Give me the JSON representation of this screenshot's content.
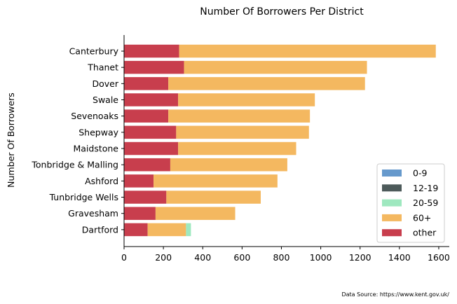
{
  "chart_data": {
    "type": "bar",
    "orientation": "horizontal",
    "stacked": true,
    "title": "Number Of Borrowers Per District",
    "ylabel": "Number Of Borrowers",
    "xlabel": "",
    "xlim": [
      0,
      1650
    ],
    "xticks": [
      0,
      200,
      400,
      600,
      800,
      1000,
      1200,
      1400,
      1600
    ],
    "grid": false,
    "legend_position": "lower-right",
    "categories": [
      "Canterbury",
      "Thanet",
      "Dover",
      "Swale",
      "Sevenoaks",
      "Shepway",
      "Maidstone",
      "Tonbridge & Malling",
      "Ashford",
      "Tunbridge Wells",
      "Gravesham",
      "Dartford"
    ],
    "series": [
      {
        "name": "0-9",
        "color": "#6699cc",
        "values": [
          0,
          0,
          0,
          0,
          0,
          0,
          0,
          0,
          0,
          0,
          0,
          0
        ]
      },
      {
        "name": "12-19",
        "color": "#4d5a5a",
        "values": [
          0,
          0,
          0,
          0,
          0,
          0,
          0,
          0,
          0,
          0,
          0,
          0
        ]
      },
      {
        "name": "20-59",
        "color": "#9ee8bf",
        "values": [
          0,
          0,
          0,
          0,
          0,
          0,
          0,
          0,
          0,
          0,
          0,
          25
        ]
      },
      {
        "name": "60+",
        "color": "#f4b860",
        "values": [
          1305,
          930,
          1000,
          695,
          720,
          675,
          600,
          595,
          630,
          480,
          405,
          195
        ]
      },
      {
        "name": "other",
        "color": "#c83e4d",
        "values": [
          280,
          305,
          225,
          275,
          225,
          265,
          275,
          235,
          150,
          215,
          160,
          120
        ]
      }
    ],
    "source": "Data Source: https://www.kent.gov.uk/"
  }
}
